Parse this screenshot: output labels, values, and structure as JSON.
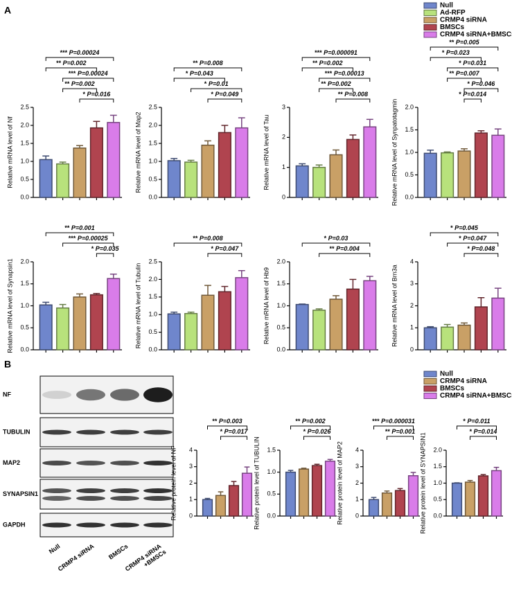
{
  "panel_labels": [
    "A",
    "B"
  ],
  "legends": [
    {
      "entries": [
        {
          "name": "Null",
          "color": "#6f86cc"
        },
        {
          "name": "Ad-RFP",
          "color": "#b8e27c"
        },
        {
          "name": "CRMP4 siRNA",
          "color": "#c9a066"
        },
        {
          "name": "BMSCs",
          "color": "#b0444f"
        },
        {
          "name": "CRMP4 siRNA+BMSCs",
          "color": "#d97ce9"
        }
      ]
    },
    {
      "entries": [
        {
          "name": "Null",
          "color": "#6f86cc"
        },
        {
          "name": "CRMP4 siRNA",
          "color": "#c9a066"
        },
        {
          "name": "BMSCs",
          "color": "#b0444f"
        },
        {
          "name": "CRMP4 siRNA+BMSCs",
          "color": "#d97ce9"
        }
      ]
    }
  ],
  "blot": {
    "rows": [
      "NF",
      "TUBULIN",
      "MAP2",
      "SYNAPSIN1",
      "GAPDH"
    ],
    "lanes": [
      [
        "Null"
      ],
      [
        "CRMP4 siRNA"
      ],
      [
        "BMSCs"
      ],
      [
        "CRMP4 siRNA",
        "+BMSCs"
      ]
    ]
  },
  "chart_data": [
    {
      "type": "bar",
      "ylabel": "Relative mRNA level of Nf",
      "categories": [
        null,
        null,
        null,
        null,
        null
      ],
      "values": [
        1.05,
        0.93,
        1.37,
        1.93,
        2.08
      ],
      "errors": [
        0.1,
        0.05,
        0.07,
        0.18,
        0.2
      ],
      "colors": [
        "#6f86cc",
        "#b8e27c",
        "#c9a066",
        "#b0444f",
        "#d97ce9"
      ],
      "ylim": [
        0,
        2.5
      ],
      "yticks": [
        {
          "value": 0,
          "label": "0.0"
        },
        0.5,
        {
          "value": 1,
          "label": "1.0"
        },
        1.5,
        {
          "value": 2,
          "label": "2.0"
        },
        2.5
      ],
      "annotations": [
        {
          "stars": "***",
          "p_value": "P=0.00024",
          "pair": [
            0,
            4
          ]
        },
        {
          "stars": "**",
          "p_value": "P=0.002",
          "pair": [
            0,
            3
          ]
        },
        {
          "stars": "***",
          "p_value": "P=0.00024",
          "pair": [
            1,
            4
          ]
        },
        {
          "stars": "**",
          "p_value": "P=0.002",
          "pair": [
            1,
            3
          ]
        },
        {
          "stars": "*",
          "p_value": "P=0.016",
          "pair": [
            2,
            4
          ]
        }
      ]
    },
    {
      "type": "bar",
      "ylabel": "Relative mRNA level of Map2",
      "categories": [
        null,
        null,
        null,
        null,
        null
      ],
      "values": [
        1.02,
        0.98,
        1.45,
        1.8,
        1.93
      ],
      "errors": [
        0.06,
        0.05,
        0.12,
        0.2,
        0.28
      ],
      "colors": [
        "#6f86cc",
        "#b8e27c",
        "#c9a066",
        "#b0444f",
        "#d97ce9"
      ],
      "ylim": [
        0,
        2.5
      ],
      "yticks": [
        {
          "value": 0,
          "label": "0.0"
        },
        0.5,
        {
          "value": 1,
          "label": "1.0"
        },
        1.5,
        {
          "value": 2,
          "label": "2.0"
        },
        2.5
      ],
      "annotations": [
        {
          "stars": "**",
          "p_value": "P=0.008",
          "pair": [
            0,
            4
          ]
        },
        {
          "stars": "*",
          "p_value": "P=0.043",
          "pair": [
            0,
            3
          ]
        },
        {
          "stars": "*",
          "p_value": "P=0.01",
          "pair": [
            1,
            4
          ]
        },
        {
          "stars": "*",
          "p_value": "P=0.049",
          "pair": [
            2,
            4
          ]
        }
      ]
    },
    {
      "type": "bar",
      "ylabel": "Relative mRNA level of Tau",
      "categories": [
        null,
        null,
        null,
        null,
        null
      ],
      "values": [
        1.05,
        1.0,
        1.42,
        1.93,
        2.35
      ],
      "errors": [
        0.07,
        0.08,
        0.16,
        0.15,
        0.25
      ],
      "colors": [
        "#6f86cc",
        "#b8e27c",
        "#c9a066",
        "#b0444f",
        "#d97ce9"
      ],
      "ylim": [
        0,
        3
      ],
      "yticks": [
        0,
        1,
        2,
        3
      ],
      "annotations": [
        {
          "stars": "***",
          "p_value": "P=0.000091",
          "pair": [
            0,
            4
          ]
        },
        {
          "stars": "**",
          "p_value": "P=0.002",
          "pair": [
            0,
            3
          ]
        },
        {
          "stars": "***",
          "p_value": "P=0.00013",
          "pair": [
            1,
            4
          ]
        },
        {
          "stars": "**",
          "p_value": "P=0.002",
          "pair": [
            1,
            3
          ]
        },
        {
          "stars": "**",
          "p_value": "P=0.008",
          "pair": [
            2,
            4
          ]
        }
      ]
    },
    {
      "type": "bar",
      "ylabel": "Relative mRNA level of Synpatotagmin",
      "categories": [
        null,
        null,
        null,
        null,
        null
      ],
      "values": [
        0.98,
        0.99,
        1.03,
        1.43,
        1.38
      ],
      "errors": [
        0.07,
        0.02,
        0.05,
        0.05,
        0.14
      ],
      "colors": [
        "#6f86cc",
        "#b8e27c",
        "#c9a066",
        "#b0444f",
        "#d97ce9"
      ],
      "ylim": [
        0,
        2
      ],
      "yticks": [
        {
          "value": 0,
          "label": "0.0"
        },
        0.5,
        {
          "value": 1,
          "label": "1.0"
        },
        1.5,
        {
          "value": 2,
          "label": "2.0"
        }
      ],
      "annotations": [
        {
          "stars": "**",
          "p_value": "P=0.005",
          "pair": [
            0,
            4
          ]
        },
        {
          "stars": "*",
          "p_value": "P=0.023",
          "pair": [
            0,
            3
          ]
        },
        {
          "stars": "*",
          "p_value": "P=0.031",
          "pair": [
            1,
            4
          ]
        },
        {
          "stars": "**",
          "p_value": "P=0.007",
          "pair": [
            1,
            3
          ]
        },
        {
          "stars": "*",
          "p_value": "P=0.046",
          "pair": [
            2,
            4
          ]
        },
        {
          "stars": "*",
          "p_value": "P=0.014",
          "pair": [
            2,
            3
          ]
        }
      ]
    },
    {
      "type": "bar",
      "ylabel": "Relative mRNA level of Synapsin1",
      "categories": [
        null,
        null,
        null,
        null,
        null
      ],
      "values": [
        1.02,
        0.95,
        1.2,
        1.25,
        1.62
      ],
      "errors": [
        0.06,
        0.08,
        0.07,
        0.03,
        0.1
      ],
      "colors": [
        "#6f86cc",
        "#b8e27c",
        "#c9a066",
        "#b0444f",
        "#d97ce9"
      ],
      "ylim": [
        0,
        2
      ],
      "yticks": [
        {
          "value": 0,
          "label": "0.0"
        },
        0.5,
        {
          "value": 1,
          "label": "1.0"
        },
        1.5,
        {
          "value": 2,
          "label": "2.0"
        }
      ],
      "annotations": [
        {
          "stars": "**",
          "p_value": "P=0.001",
          "pair": [
            0,
            4
          ]
        },
        {
          "stars": "***",
          "p_value": "P=0.00025",
          "pair": [
            1,
            4
          ]
        },
        {
          "stars": "*",
          "p_value": "P=0.035",
          "pair": [
            3,
            4
          ]
        }
      ]
    },
    {
      "type": "bar",
      "ylabel": "Relative mRNA level of Tubulin",
      "categories": [
        null,
        null,
        null,
        null,
        null
      ],
      "values": [
        1.02,
        1.03,
        1.55,
        1.65,
        2.05
      ],
      "errors": [
        0.05,
        0.04,
        0.28,
        0.15,
        0.2
      ],
      "colors": [
        "#6f86cc",
        "#b8e27c",
        "#c9a066",
        "#b0444f",
        "#d97ce9"
      ],
      "ylim": [
        0,
        2.5
      ],
      "yticks": [
        {
          "value": 0,
          "label": "0.0"
        },
        0.5,
        {
          "value": 1,
          "label": "1.0"
        },
        1.5,
        {
          "value": 2,
          "label": "2.0"
        },
        2.5
      ],
      "annotations": [
        {
          "stars": "**",
          "p_value": "P=0.008",
          "pair": [
            0,
            4
          ]
        },
        {
          "stars": "*",
          "p_value": "P=0.047",
          "pair": [
            2,
            4
          ]
        }
      ]
    },
    {
      "type": "bar",
      "ylabel": "Relative mRNA level of Hb9",
      "categories": [
        null,
        null,
        null,
        null,
        null
      ],
      "values": [
        1.03,
        0.9,
        1.15,
        1.38,
        1.57
      ],
      "errors": [
        0.01,
        0.03,
        0.08,
        0.22,
        0.1
      ],
      "colors": [
        "#6f86cc",
        "#b8e27c",
        "#c9a066",
        "#b0444f",
        "#d97ce9"
      ],
      "ylim": [
        0,
        2
      ],
      "yticks": [
        {
          "value": 0,
          "label": "0.0"
        },
        0.5,
        {
          "value": 1,
          "label": "1.0"
        },
        1.5,
        {
          "value": 2,
          "label": "2.0"
        }
      ],
      "annotations": [
        {
          "stars": "*",
          "p_value": "P=0.03",
          "pair": [
            0,
            4
          ]
        },
        {
          "stars": "**",
          "p_value": "P=0.004",
          "pair": [
            1,
            4
          ]
        }
      ]
    },
    {
      "type": "bar",
      "ylabel": "Relative mRNA level of Brn3a",
      "categories": [
        null,
        null,
        null,
        null,
        null
      ],
      "values": [
        1.0,
        1.03,
        1.12,
        1.95,
        2.35
      ],
      "errors": [
        0.05,
        0.12,
        0.1,
        0.42,
        0.45
      ],
      "colors": [
        "#6f86cc",
        "#b8e27c",
        "#c9a066",
        "#b0444f",
        "#d97ce9"
      ],
      "ylim": [
        0,
        4
      ],
      "yticks": [
        0,
        1,
        2,
        3,
        4
      ],
      "annotations": [
        {
          "stars": "*",
          "p_value": "P=0.045",
          "pair": [
            0,
            4
          ]
        },
        {
          "stars": "*",
          "p_value": "P=0.047",
          "pair": [
            1,
            4
          ]
        },
        {
          "stars": "*",
          "p_value": "P=0.048",
          "pair": [
            2,
            4
          ]
        }
      ]
    },
    {
      "type": "bar",
      "ylabel": "Relative protein level of NF",
      "categories": [
        null,
        null,
        null,
        null
      ],
      "values": [
        1.0,
        1.25,
        1.85,
        2.6
      ],
      "errors": [
        0.07,
        0.22,
        0.25,
        0.38
      ],
      "colors": [
        "#6f86cc",
        "#c9a066",
        "#b0444f",
        "#d97ce9"
      ],
      "ylim": [
        0,
        4
      ],
      "yticks": [
        0,
        1,
        2,
        3,
        4
      ],
      "annotations": [
        {
          "stars": "**",
          "p_value": "P=0.003",
          "pair": [
            0,
            3
          ]
        },
        {
          "stars": "*",
          "p_value": "P=0.017",
          "pair": [
            1,
            3
          ]
        }
      ]
    },
    {
      "type": "bar",
      "ylabel": "Relative protein level of TUBULIN",
      "categories": [
        null,
        null,
        null,
        null
      ],
      "values": [
        1.0,
        1.07,
        1.15,
        1.25
      ],
      "errors": [
        0.04,
        0.02,
        0.03,
        0.04
      ],
      "colors": [
        "#6f86cc",
        "#c9a066",
        "#b0444f",
        "#d97ce9"
      ],
      "ylim": [
        0,
        1.5
      ],
      "yticks": [
        {
          "value": 0,
          "label": "0.0"
        },
        0.5,
        {
          "value": 1,
          "label": "1.0"
        },
        1.5
      ],
      "annotations": [
        {
          "stars": "**",
          "p_value": "P=0.002",
          "pair": [
            0,
            3
          ]
        },
        {
          "stars": "*",
          "p_value": "P=0.026",
          "pair": [
            1,
            3
          ]
        }
      ]
    },
    {
      "type": "bar",
      "ylabel": "Relative protein level of MAP2",
      "categories": [
        null,
        null,
        null,
        null
      ],
      "values": [
        1.0,
        1.4,
        1.55,
        2.45
      ],
      "errors": [
        0.13,
        0.12,
        0.12,
        0.2
      ],
      "colors": [
        "#6f86cc",
        "#c9a066",
        "#b0444f",
        "#d97ce9"
      ],
      "ylim": [
        0,
        4
      ],
      "yticks": [
        0,
        1,
        2,
        3,
        4
      ],
      "annotations": [
        {
          "stars": "***",
          "p_value": "P=0.000031",
          "pair": [
            0,
            3
          ]
        },
        {
          "stars": "**",
          "p_value": "P=0.001",
          "pair": [
            1,
            3
          ]
        }
      ]
    },
    {
      "type": "bar",
      "ylabel": "Relative protein level of SYNAPSIN1",
      "categories": [
        null,
        null,
        null,
        null
      ],
      "values": [
        1.0,
        1.03,
        1.22,
        1.38
      ],
      "errors": [
        0.01,
        0.05,
        0.04,
        0.1
      ],
      "colors": [
        "#6f86cc",
        "#c9a066",
        "#b0444f",
        "#d97ce9"
      ],
      "ylim": [
        0,
        2
      ],
      "yticks": [
        {
          "value": 0,
          "label": "0.0"
        },
        0.5,
        {
          "value": 1,
          "label": "1.0"
        },
        1.5,
        {
          "value": 2,
          "label": "2.0"
        }
      ],
      "annotations": [
        {
          "stars": "*",
          "p_value": "P=0.011",
          "pair": [
            0,
            3
          ]
        },
        {
          "stars": "*",
          "p_value": "P=0.014",
          "pair": [
            1,
            3
          ]
        }
      ]
    }
  ]
}
